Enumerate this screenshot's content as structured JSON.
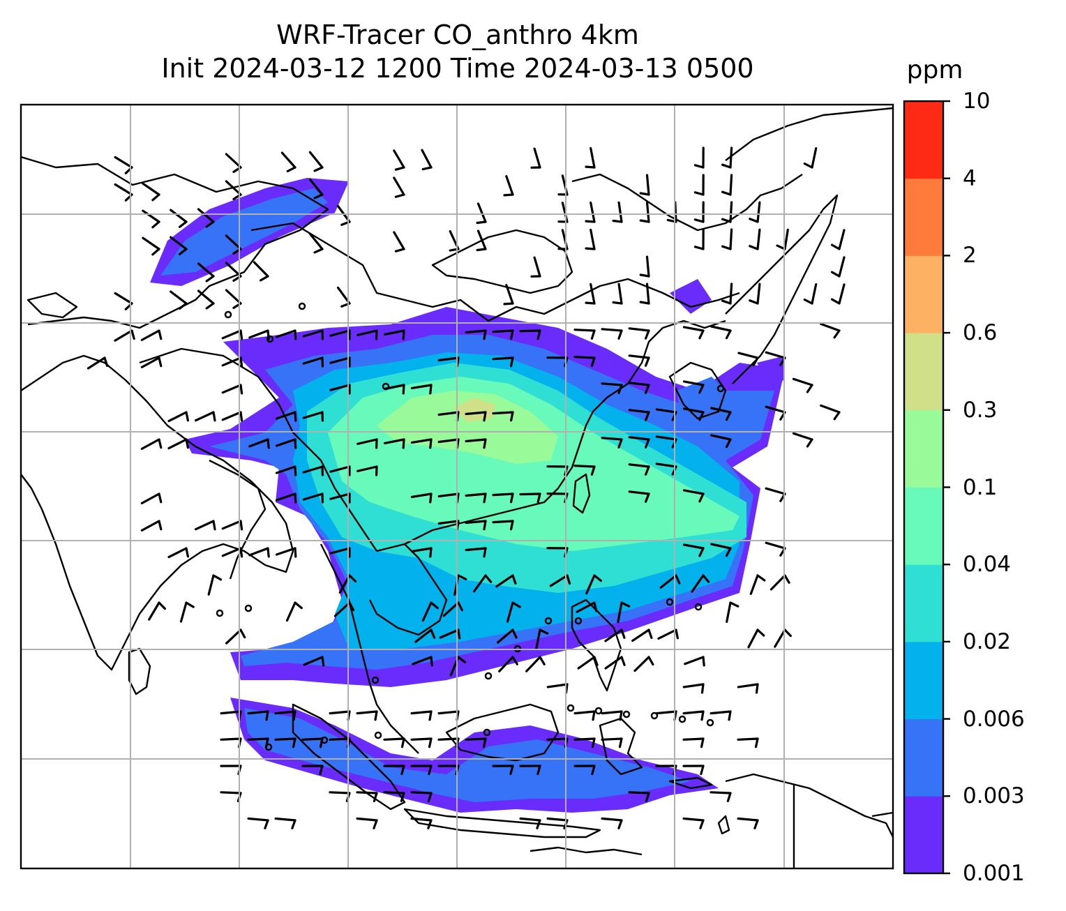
{
  "title": {
    "line1": "WRF-Tracer CO_anthro 4km",
    "line2": "Init 2024-03-12 1200 Time 2024-03-13 0500"
  },
  "colorbar": {
    "unit": "ppm",
    "levels": [
      "0.001",
      "0.003",
      "0.006",
      "0.02",
      "0.04",
      "0.1",
      "0.3",
      "0.6",
      "2",
      "4",
      "10"
    ],
    "colors": [
      "#6a2cfb",
      "#3673f7",
      "#03b1ec",
      "#2fdfd3",
      "#67faba",
      "#98fa98",
      "#cfe088",
      "#fdb162",
      "#fe7b3b",
      "#fe2a14"
    ]
  },
  "map": {
    "gridlines": true,
    "coastline_color": "#000000",
    "wind_barb_color": "#000000",
    "grid_color": "#b0b0b0"
  }
}
